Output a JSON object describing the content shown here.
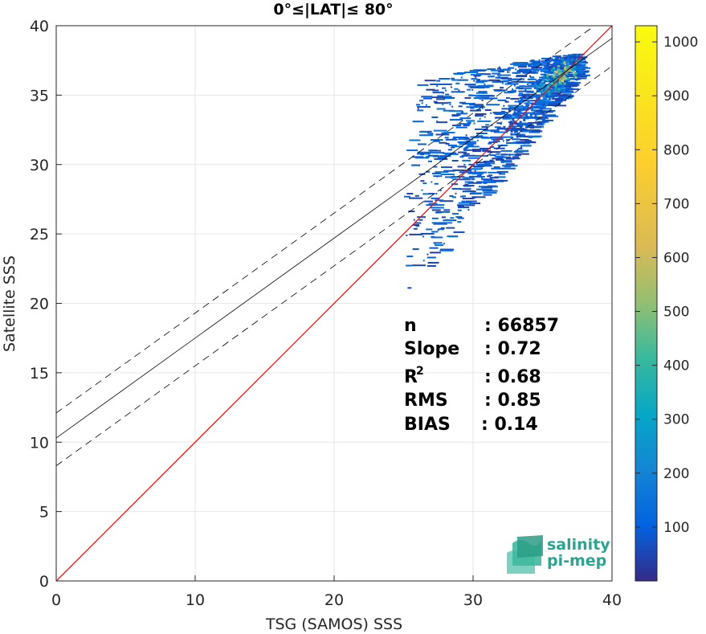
{
  "chart_data": {
    "type": "heatmap",
    "title": "0°≤|LAT|≤ 80°",
    "xlabel": "TSG (SAMOS) SSS",
    "ylabel": "Satellite SSS",
    "xlim": [
      0,
      40
    ],
    "ylim": [
      0,
      40
    ],
    "xticks": [
      "0",
      "10",
      "20",
      "30",
      "40"
    ],
    "yticks": [
      "0",
      "5",
      "10",
      "15",
      "20",
      "25",
      "30",
      "35",
      "40"
    ],
    "grid": true,
    "lines": [
      {
        "kind": "one-to-one",
        "color": "#ff0000",
        "x": [
          0,
          40
        ],
        "y": [
          0,
          40
        ]
      },
      {
        "kind": "regression",
        "color": "#000000",
        "dash": "solid",
        "x": [
          0,
          40
        ],
        "y": [
          10.3,
          39.1
        ]
      },
      {
        "kind": "regression-upper",
        "color": "#000000",
        "dash": "dashed",
        "x": [
          0,
          40
        ],
        "y": [
          12.1,
          40.9
        ]
      },
      {
        "kind": "regression-lower",
        "color": "#000000",
        "dash": "dashed",
        "x": [
          0,
          40
        ],
        "y": [
          8.3,
          37.1
        ]
      }
    ],
    "stats": [
      {
        "label": "n",
        "value": ": 66857"
      },
      {
        "label": "Slope",
        "value": ": 0.72"
      },
      {
        "label": "R",
        "sup": "2",
        "value": ": 0.68"
      },
      {
        "label": "RMS",
        "value": ": 0.85"
      },
      {
        "label": "BIAS",
        "value": ": 0.14"
      }
    ],
    "colorbar": {
      "min": 0,
      "max": 1030,
      "ticks": [
        "100",
        "200",
        "300",
        "400",
        "500",
        "600",
        "700",
        "800",
        "900",
        "1000"
      ],
      "colormap": "parula"
    },
    "density": [
      {
        "x": 33.5,
        "y": 34.0,
        "count": 120
      },
      {
        "x": 34.0,
        "y": 34.5,
        "count": 160
      },
      {
        "x": 34.5,
        "y": 35.0,
        "count": 200
      },
      {
        "x": 35.0,
        "y": 35.3,
        "count": 250
      },
      {
        "x": 35.3,
        "y": 35.6,
        "count": 300
      },
      {
        "x": 35.6,
        "y": 35.9,
        "count": 350
      },
      {
        "x": 35.9,
        "y": 36.1,
        "count": 420
      },
      {
        "x": 36.1,
        "y": 36.3,
        "count": 500
      },
      {
        "x": 36.3,
        "y": 36.5,
        "count": 600
      },
      {
        "x": 36.5,
        "y": 36.7,
        "count": 700
      },
      {
        "x": 36.7,
        "y": 36.9,
        "count": 550
      },
      {
        "x": 37.0,
        "y": 37.1,
        "count": 300
      },
      {
        "x": 37.3,
        "y": 37.4,
        "count": 180
      },
      {
        "x": 35.2,
        "y": 34.6,
        "count": 200
      },
      {
        "x": 34.4,
        "y": 34.0,
        "count": 150
      },
      {
        "x": 33.2,
        "y": 33.4,
        "count": 100
      },
      {
        "x": 32.8,
        "y": 32.8,
        "count": 80
      }
    ]
  },
  "logo": {
    "line1": "salinity",
    "line2": "pi-mep"
  }
}
